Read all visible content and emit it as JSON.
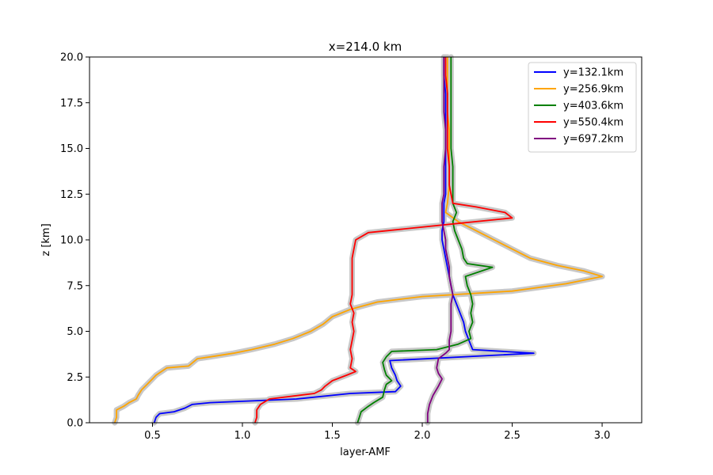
{
  "chart_data": {
    "type": "line",
    "title": "x=214.0 km",
    "xlabel": "layer-AMF",
    "ylabel": "z [km]",
    "xlim": [
      0.15,
      3.22
    ],
    "ylim": [
      0,
      20
    ],
    "xticks": [
      0.5,
      1.0,
      1.5,
      2.0,
      2.5,
      3.0
    ],
    "xtick_labels": [
      "0.5",
      "1.0",
      "1.5",
      "2.0",
      "2.5",
      "3.0"
    ],
    "yticks": [
      0,
      2.5,
      5,
      7.5,
      10,
      12.5,
      15,
      17.5,
      20
    ],
    "ytick_labels": [
      "0.0",
      "2.5",
      "5.0",
      "7.5",
      "10.0",
      "12.5",
      "15.0",
      "17.5",
      "20.0"
    ],
    "grid": false,
    "legend_position": "top-right",
    "uncertainty_band_color": "#c8c8c8",
    "series": [
      {
        "name": "y=132.1km",
        "color": "#0000ff",
        "points": [
          [
            0.51,
            0.0
          ],
          [
            0.52,
            0.3
          ],
          [
            0.54,
            0.5
          ],
          [
            0.62,
            0.6
          ],
          [
            0.68,
            0.8
          ],
          [
            0.72,
            1.0
          ],
          [
            0.82,
            1.1
          ],
          [
            1.3,
            1.3
          ],
          [
            1.6,
            1.6
          ],
          [
            1.85,
            1.7
          ],
          [
            1.88,
            2.0
          ],
          [
            1.86,
            2.3
          ],
          [
            1.85,
            2.6
          ],
          [
            1.83,
            3.0
          ],
          [
            1.82,
            3.4
          ],
          [
            2.62,
            3.8
          ],
          [
            2.28,
            4.0
          ],
          [
            2.26,
            4.5
          ],
          [
            2.24,
            5.0
          ],
          [
            2.23,
            5.5
          ],
          [
            2.21,
            6.0
          ],
          [
            2.19,
            6.5
          ],
          [
            2.17,
            7.0
          ],
          [
            2.16,
            7.5
          ],
          [
            2.15,
            8.0
          ],
          [
            2.14,
            8.5
          ],
          [
            2.13,
            9.0
          ],
          [
            2.12,
            9.5
          ],
          [
            2.11,
            10.0
          ],
          [
            2.11,
            10.5
          ],
          [
            2.12,
            11.0
          ],
          [
            2.12,
            11.5
          ],
          [
            2.12,
            12.0
          ],
          [
            2.13,
            12.5
          ],
          [
            2.13,
            13.0
          ],
          [
            2.13,
            14.0
          ],
          [
            2.13,
            15.0
          ],
          [
            2.13,
            16.0
          ],
          [
            2.13,
            17.0
          ],
          [
            2.13,
            18.0
          ],
          [
            2.12,
            19.0
          ],
          [
            2.12,
            20.0
          ]
        ]
      },
      {
        "name": "y=256.9km",
        "color": "#ffa500",
        "points": [
          [
            0.29,
            0.0
          ],
          [
            0.3,
            0.3
          ],
          [
            0.3,
            0.7
          ],
          [
            0.34,
            0.9
          ],
          [
            0.37,
            1.1
          ],
          [
            0.41,
            1.3
          ],
          [
            0.42,
            1.5
          ],
          [
            0.44,
            1.8
          ],
          [
            0.47,
            2.1
          ],
          [
            0.5,
            2.4
          ],
          [
            0.52,
            2.6
          ],
          [
            0.55,
            2.8
          ],
          [
            0.58,
            3.0
          ],
          [
            0.7,
            3.1
          ],
          [
            0.75,
            3.5
          ],
          [
            0.82,
            3.6
          ],
          [
            0.95,
            3.8
          ],
          [
            1.05,
            4.0
          ],
          [
            1.18,
            4.3
          ],
          [
            1.28,
            4.6
          ],
          [
            1.38,
            5.0
          ],
          [
            1.45,
            5.4
          ],
          [
            1.5,
            5.8
          ],
          [
            1.6,
            6.2
          ],
          [
            1.75,
            6.6
          ],
          [
            2.0,
            6.9
          ],
          [
            2.5,
            7.2
          ],
          [
            2.8,
            7.6
          ],
          [
            3.0,
            8.0
          ],
          [
            2.9,
            8.3
          ],
          [
            2.75,
            8.6
          ],
          [
            2.6,
            9.0
          ],
          [
            2.5,
            9.5
          ],
          [
            2.4,
            10.0
          ],
          [
            2.3,
            10.5
          ],
          [
            2.2,
            11.0
          ],
          [
            2.13,
            11.5
          ],
          [
            2.14,
            12.0
          ],
          [
            2.15,
            13.0
          ],
          [
            2.15,
            14.0
          ],
          [
            2.15,
            15.0
          ],
          [
            2.15,
            16.0
          ],
          [
            2.14,
            17.0
          ],
          [
            2.14,
            18.0
          ],
          [
            2.14,
            19.0
          ],
          [
            2.14,
            20.0
          ]
        ]
      },
      {
        "name": "y=403.6km",
        "color": "#008000",
        "points": [
          [
            1.64,
            0.0
          ],
          [
            1.65,
            0.3
          ],
          [
            1.66,
            0.6
          ],
          [
            1.7,
            0.9
          ],
          [
            1.73,
            1.1
          ],
          [
            1.78,
            1.4
          ],
          [
            1.79,
            1.8
          ],
          [
            1.8,
            2.1
          ],
          [
            1.83,
            2.3
          ],
          [
            1.8,
            2.6
          ],
          [
            1.79,
            2.9
          ],
          [
            1.78,
            3.3
          ],
          [
            1.8,
            3.6
          ],
          [
            1.83,
            3.9
          ],
          [
            2.08,
            4.0
          ],
          [
            2.2,
            4.3
          ],
          [
            2.27,
            4.6
          ],
          [
            2.26,
            5.0
          ],
          [
            2.28,
            5.5
          ],
          [
            2.27,
            6.0
          ],
          [
            2.28,
            6.5
          ],
          [
            2.27,
            7.0
          ],
          [
            2.25,
            7.5
          ],
          [
            2.24,
            8.0
          ],
          [
            2.39,
            8.5
          ],
          [
            2.25,
            8.7
          ],
          [
            2.23,
            9.0
          ],
          [
            2.22,
            9.5
          ],
          [
            2.2,
            10.0
          ],
          [
            2.18,
            10.5
          ],
          [
            2.17,
            11.0
          ],
          [
            2.19,
            11.5
          ],
          [
            2.17,
            12.0
          ],
          [
            2.17,
            12.5
          ],
          [
            2.17,
            13.0
          ],
          [
            2.17,
            14.0
          ],
          [
            2.16,
            15.0
          ],
          [
            2.16,
            16.0
          ],
          [
            2.16,
            17.0
          ],
          [
            2.16,
            18.0
          ],
          [
            2.16,
            19.0
          ],
          [
            2.16,
            20.0
          ]
        ]
      },
      {
        "name": "y=550.4km",
        "color": "#ff0000",
        "points": [
          [
            1.07,
            0.0
          ],
          [
            1.08,
            0.3
          ],
          [
            1.08,
            0.7
          ],
          [
            1.1,
            1.0
          ],
          [
            1.15,
            1.3
          ],
          [
            1.4,
            1.6
          ],
          [
            1.44,
            1.8
          ],
          [
            1.46,
            2.0
          ],
          [
            1.5,
            2.3
          ],
          [
            1.58,
            2.6
          ],
          [
            1.63,
            2.8
          ],
          [
            1.6,
            3.0
          ],
          [
            1.61,
            3.5
          ],
          [
            1.6,
            4.0
          ],
          [
            1.61,
            4.5
          ],
          [
            1.62,
            5.0
          ],
          [
            1.61,
            5.5
          ],
          [
            1.62,
            6.0
          ],
          [
            1.6,
            6.5
          ],
          [
            1.61,
            7.0
          ],
          [
            1.61,
            7.5
          ],
          [
            1.61,
            8.0
          ],
          [
            1.61,
            8.5
          ],
          [
            1.61,
            9.0
          ],
          [
            1.62,
            9.5
          ],
          [
            1.63,
            10.0
          ],
          [
            1.7,
            10.4
          ],
          [
            2.2,
            10.9
          ],
          [
            2.5,
            11.2
          ],
          [
            2.46,
            11.5
          ],
          [
            2.3,
            11.8
          ],
          [
            2.17,
            12.0
          ],
          [
            2.16,
            12.5
          ],
          [
            2.15,
            13.0
          ],
          [
            2.15,
            14.0
          ],
          [
            2.14,
            15.0
          ],
          [
            2.14,
            16.0
          ],
          [
            2.14,
            17.0
          ],
          [
            2.14,
            18.0
          ],
          [
            2.13,
            19.0
          ],
          [
            2.13,
            20.0
          ]
        ]
      },
      {
        "name": "y=697.2km",
        "color": "#800080",
        "points": [
          [
            2.03,
            0.0
          ],
          [
            2.03,
            0.5
          ],
          [
            2.04,
            1.0
          ],
          [
            2.06,
            1.5
          ],
          [
            2.09,
            2.0
          ],
          [
            2.11,
            2.4
          ],
          [
            2.09,
            2.7
          ],
          [
            2.08,
            3.0
          ],
          [
            2.09,
            3.5
          ],
          [
            2.13,
            3.8
          ],
          [
            2.15,
            4.0
          ],
          [
            2.15,
            4.5
          ],
          [
            2.16,
            5.0
          ],
          [
            2.16,
            5.5
          ],
          [
            2.16,
            6.0
          ],
          [
            2.16,
            6.5
          ],
          [
            2.17,
            7.0
          ],
          [
            2.16,
            7.5
          ],
          [
            2.15,
            8.0
          ],
          [
            2.15,
            8.5
          ],
          [
            2.14,
            9.0
          ],
          [
            2.13,
            9.5
          ],
          [
            2.13,
            10.0
          ],
          [
            2.12,
            10.5
          ],
          [
            2.11,
            11.0
          ],
          [
            2.11,
            11.5
          ],
          [
            2.11,
            12.0
          ],
          [
            2.12,
            12.5
          ],
          [
            2.12,
            13.0
          ],
          [
            2.12,
            14.0
          ],
          [
            2.13,
            15.0
          ],
          [
            2.13,
            16.0
          ],
          [
            2.12,
            17.0
          ],
          [
            2.12,
            18.0
          ],
          [
            2.12,
            19.0
          ],
          [
            2.12,
            20.0
          ]
        ]
      }
    ]
  }
}
